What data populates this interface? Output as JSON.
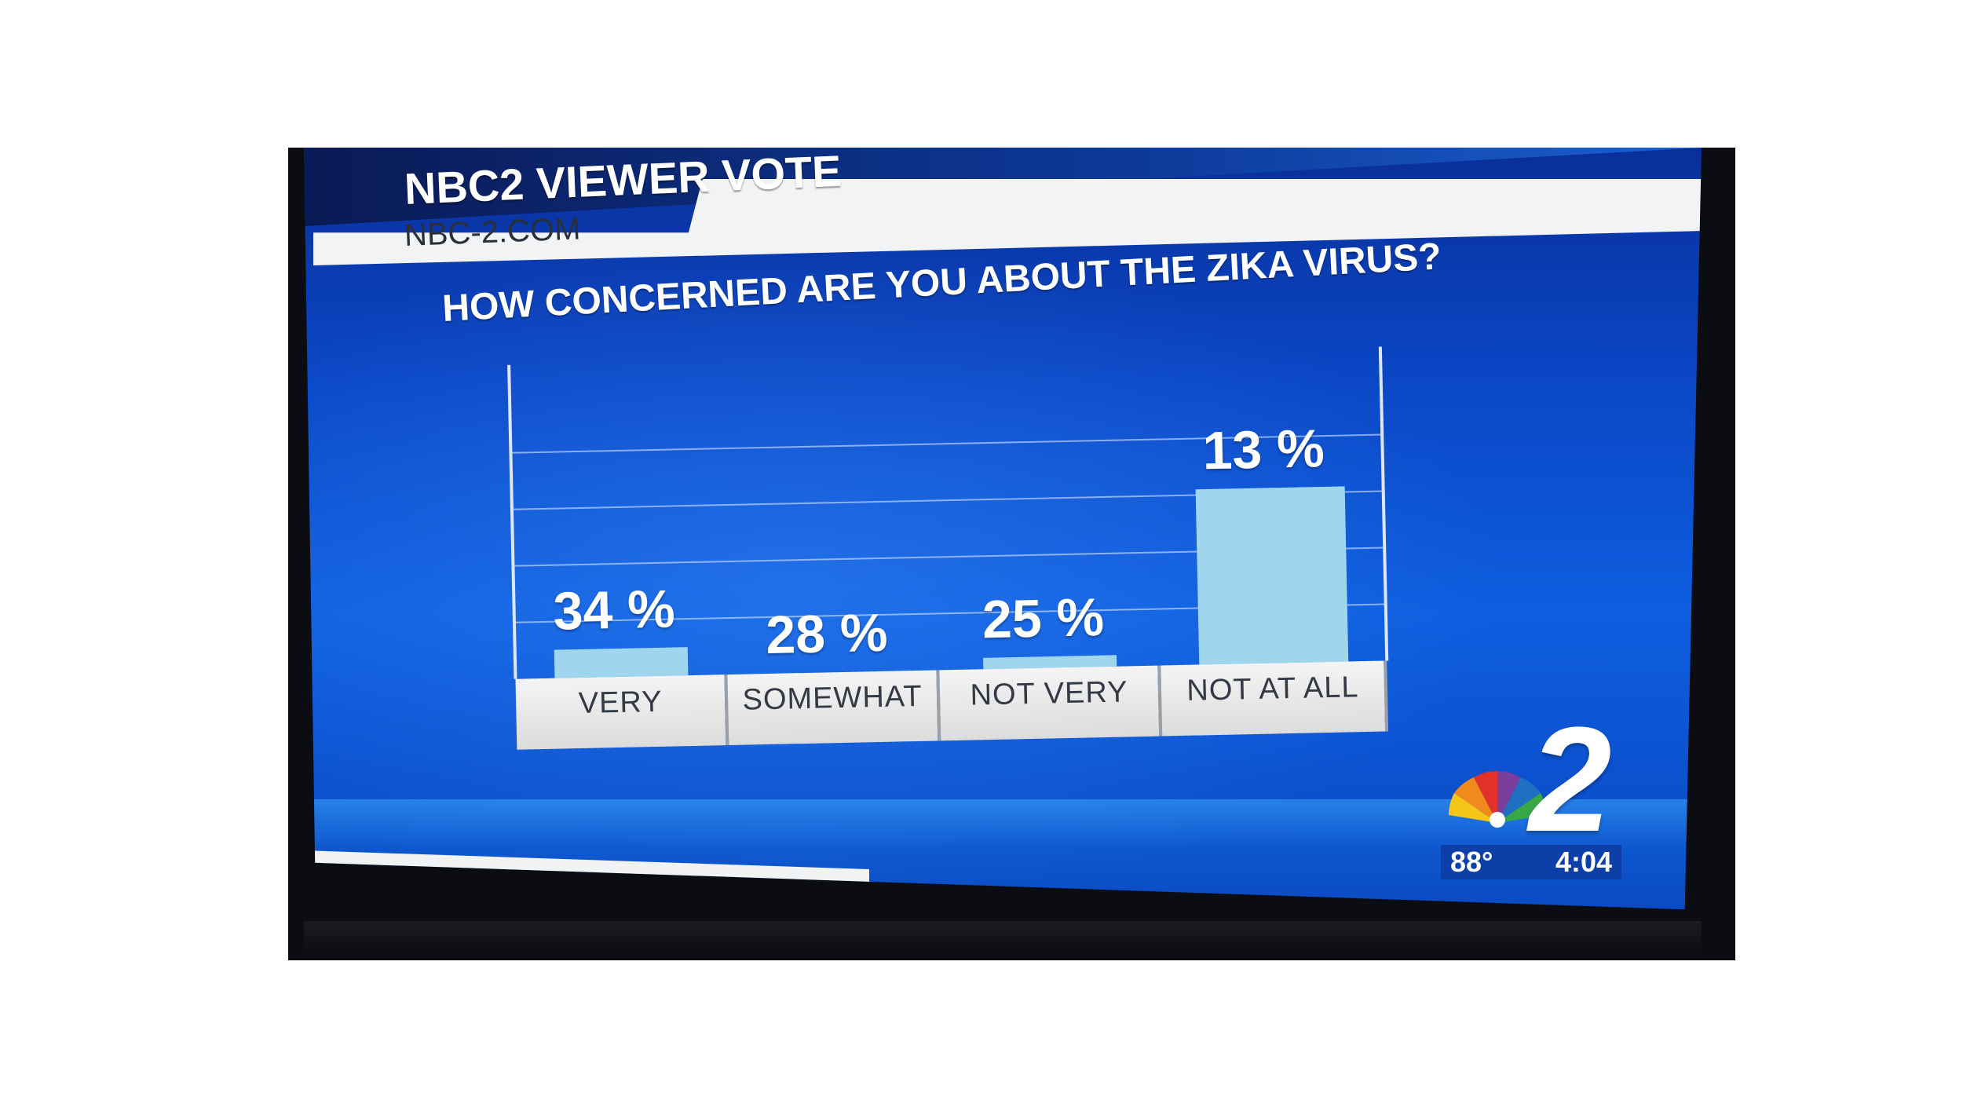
{
  "header": {
    "title": "NBC2 VIEWER VOTE",
    "url": "NBC-2.COM"
  },
  "question": "HOW CONCERNED ARE YOU ABOUT THE ZIKA VIRUS?",
  "footer": {
    "temperature": "88°",
    "time": "4:04"
  },
  "colors": {
    "bar": "#9fd6ee",
    "background": "#0b4fd0",
    "label_box": "#e6e6e6"
  },
  "chart_data": {
    "type": "bar",
    "title": "HOW CONCERNED ARE YOU ABOUT THE ZIKA VIRUS?",
    "categories": [
      "VERY",
      "SOMEWHAT",
      "NOT VERY",
      "NOT AT ALL"
    ],
    "values": [
      34,
      28,
      25,
      13
    ],
    "value_labels": [
      "34 %",
      "28 %",
      "25 %",
      "13 %"
    ],
    "bar_heights_as_shown": [
      0.1,
      0.0,
      0.04,
      0.62
    ],
    "grid": true,
    "ylim": [
      0,
      100
    ]
  }
}
